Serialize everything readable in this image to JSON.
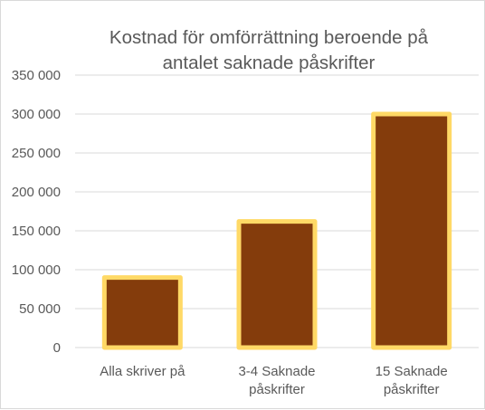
{
  "chart_data": {
    "type": "bar",
    "title": "Kostnad för omförrättning beroende på antalet saknade påskrifter",
    "title_lines": [
      "Kostnad för omförrättning beroende på",
      "antalet saknade påskrifter"
    ],
    "categories": [
      "Alla skriver på",
      "3-4 Saknade påskrifter",
      "15 Saknade påskrifter"
    ],
    "category_lines": [
      [
        "Alla skriver på"
      ],
      [
        "3-4 Saknade",
        "påskrifter"
      ],
      [
        "15 Saknade",
        "påskrifter"
      ]
    ],
    "values": [
      90000,
      162000,
      300000
    ],
    "ylim": [
      0,
      350000
    ],
    "yticks": [
      0,
      50000,
      100000,
      150000,
      200000,
      250000,
      300000,
      350000
    ],
    "ytick_labels": [
      "0",
      "50 000",
      "100 000",
      "150 000",
      "200 000",
      "250 000",
      "300 000",
      "350 000"
    ],
    "xlabel": "",
    "ylabel": "",
    "grid": true,
    "legend": "none",
    "colors": {
      "bar_fill": "#843c0c",
      "bar_border": "#ffd966",
      "gridline": "#d9d9d9",
      "text": "#595959"
    }
  }
}
